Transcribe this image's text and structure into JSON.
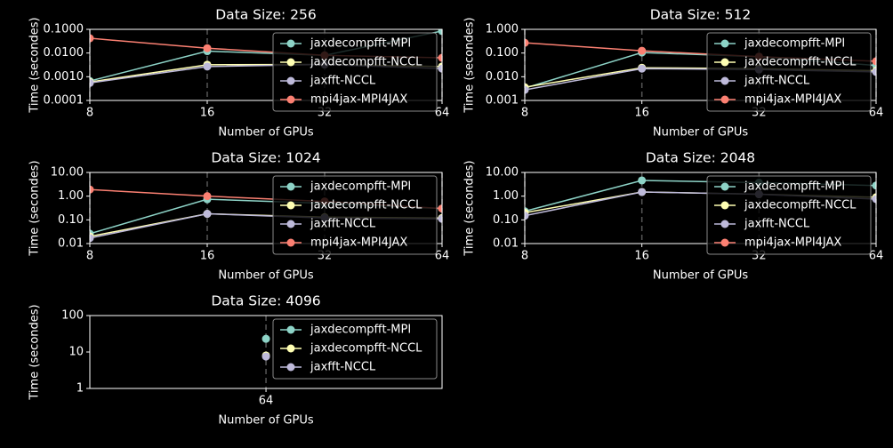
{
  "chart_data": [
    {
      "type": "line",
      "title": "Data Size: 256",
      "xlabel": "Number of GPUs",
      "ylabel": "Time (secondes)",
      "x": [
        8,
        16,
        32,
        64
      ],
      "xscale": "log",
      "yscale": "log",
      "xlim": [
        8,
        64
      ],
      "xticks": [
        8,
        16,
        32,
        64
      ],
      "ylim": [
        0.0001,
        0.1
      ],
      "yticks": [
        {
          "value": 0.0001,
          "label": "0.0001"
        },
        {
          "value": 0.001,
          "label": "0.0010"
        },
        {
          "value": 0.01,
          "label": "0.0100"
        },
        {
          "value": 0.1,
          "label": "0.1000"
        }
      ],
      "xgrid": true,
      "legend": "upper right",
      "series": [
        {
          "name": "jaxdecompfft-MPI",
          "color": "#8dd3c7",
          "values": [
            0.00066,
            0.012,
            0.008,
            0.085
          ]
        },
        {
          "name": "jaxdecompfft-NCCL",
          "color": "#ffffb3",
          "values": [
            0.0006,
            0.0032,
            0.0033,
            0.0027
          ]
        },
        {
          "name": "jaxfft-NCCL",
          "color": "#bebada",
          "values": [
            0.00055,
            0.0027,
            0.0033,
            0.0022
          ]
        },
        {
          "name": "mpi4jax-MPI4JAX",
          "color": "#fb8072",
          "values": [
            0.042,
            0.016,
            0.008,
            0.0063
          ]
        }
      ]
    },
    {
      "type": "line",
      "title": "Data Size: 512",
      "xlabel": "Number of GPUs",
      "ylabel": "Time (secondes)",
      "x": [
        8,
        16,
        32,
        64
      ],
      "xscale": "log",
      "yscale": "log",
      "xlim": [
        8,
        64
      ],
      "xticks": [
        8,
        16,
        32,
        64
      ],
      "ylim": [
        0.001,
        1
      ],
      "yticks": [
        0.001,
        {
          "value": 0.01,
          "label": "0.010"
        },
        {
          "value": 0.1,
          "label": "0.100"
        },
        {
          "value": 1,
          "label": "1.000"
        }
      ],
      "xgrid": true,
      "legend": "upper right",
      "series": [
        {
          "name": "jaxdecompfft-MPI",
          "color": "#8dd3c7",
          "values": [
            0.0033,
            0.105,
            0.07,
            0.03
          ]
        },
        {
          "name": "jaxdecompfft-NCCL",
          "color": "#ffffb3",
          "values": [
            0.0036,
            0.024,
            0.022,
            0.018
          ]
        },
        {
          "name": "jaxfft-NCCL",
          "color": "#bebada",
          "values": [
            0.0028,
            0.022,
            0.02,
            0.016
          ]
        },
        {
          "name": "mpi4jax-MPI4JAX",
          "color": "#fb8072",
          "values": [
            0.27,
            0.125,
            0.07,
            0.045
          ]
        }
      ]
    },
    {
      "type": "line",
      "title": "Data Size: 1024",
      "xlabel": "Number of GPUs",
      "ylabel": "Time (secondes)",
      "x": [
        8,
        16,
        32,
        64
      ],
      "xscale": "log",
      "yscale": "log",
      "xlim": [
        8,
        64
      ],
      "xticks": [
        8,
        16,
        32,
        64
      ],
      "ylim": [
        0.01,
        10
      ],
      "yticks": [
        0.01,
        {
          "value": 0.1,
          "label": "0.10"
        },
        {
          "value": 1,
          "label": "1.00"
        },
        {
          "value": 10,
          "label": "10.00"
        }
      ],
      "xgrid": true,
      "legend": "upper right",
      "series": [
        {
          "name": "jaxdecompfft-MPI",
          "color": "#8dd3c7",
          "values": [
            0.026,
            0.74,
            0.5,
            0.3
          ]
        },
        {
          "name": "jaxdecompfft-NCCL",
          "color": "#ffffb3",
          "values": [
            0.02,
            0.18,
            0.13,
            0.12
          ]
        },
        {
          "name": "jaxfft-NCCL",
          "color": "#bebada",
          "values": [
            0.017,
            0.18,
            0.12,
            0.11
          ]
        },
        {
          "name": "mpi4jax-MPI4JAX",
          "color": "#fb8072",
          "values": [
            1.9,
            1.0,
            0.6,
            0.3
          ]
        }
      ]
    },
    {
      "type": "line",
      "title": "Data Size: 2048",
      "xlabel": "Number of GPUs",
      "ylabel": "Time (secondes)",
      "x": [
        8,
        16,
        32,
        64
      ],
      "xscale": "log",
      "yscale": "log",
      "xlim": [
        8,
        64
      ],
      "xticks": [
        8,
        16,
        32,
        64
      ],
      "ylim": [
        0.01,
        10
      ],
      "yticks": [
        0.01,
        {
          "value": 0.1,
          "label": "0.10"
        },
        {
          "value": 1,
          "label": "1.00"
        },
        {
          "value": 10,
          "label": "10.00"
        }
      ],
      "xgrid": true,
      "legend": "upper right",
      "series": [
        {
          "name": "jaxdecompfft-MPI",
          "color": "#8dd3c7",
          "values": [
            0.23,
            4.6,
            3.7,
            2.8
          ]
        },
        {
          "name": "jaxdecompfft-NCCL",
          "color": "#ffffb3",
          "values": [
            0.2,
            1.5,
            1.2,
            0.9
          ]
        },
        {
          "name": "jaxfft-NCCL",
          "color": "#bebada",
          "values": [
            0.15,
            1.5,
            1.2,
            0.75
          ]
        },
        {
          "name": "mpi4jax-MPI4JAX",
          "color": "#fb8072",
          "values": [
            null,
            null,
            null,
            null
          ]
        }
      ]
    },
    {
      "type": "line",
      "title": "Data Size: 4096",
      "xlabel": "Number of GPUs",
      "ylabel": "Time (secondes)",
      "x": [
        64
      ],
      "xscale": "log",
      "yscale": "log",
      "xlim": [
        45.25,
        90.5
      ],
      "xticks": [
        64
      ],
      "ylim": [
        1,
        100
      ],
      "yticks": [
        1,
        10,
        100
      ],
      "xgrid": true,
      "legend": "upper right",
      "series": [
        {
          "name": "jaxdecompfft-MPI",
          "color": "#8dd3c7",
          "values": [
            23
          ]
        },
        {
          "name": "jaxdecompfft-NCCL",
          "color": "#ffffb3",
          "values": [
            8
          ]
        },
        {
          "name": "jaxfft-NCCL",
          "color": "#bebada",
          "values": [
            7.5
          ]
        }
      ]
    }
  ]
}
